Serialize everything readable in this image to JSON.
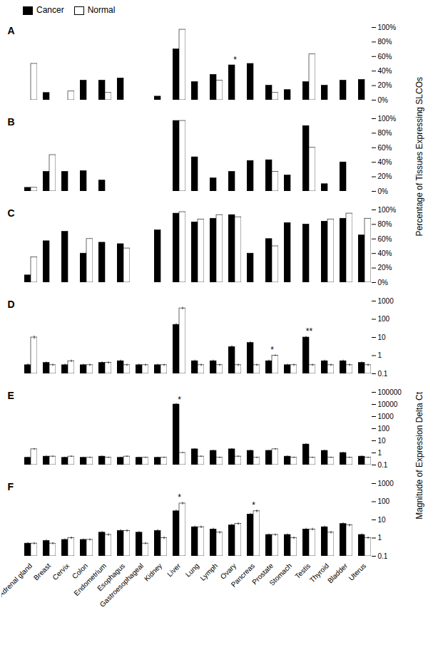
{
  "chart_data": [
    {
      "type": "bar",
      "title": "A",
      "y_label": "Percentage of Tissues Expressing SLCOs",
      "legend": "upper left",
      "tick_labels": "y",
      "categories": [
        "Adrenal gland",
        "Breast",
        "Cervix",
        "Colon",
        "Endometrium",
        "Esophagus",
        "Gastroesophageal",
        "Kidney",
        "Liver",
        "Lung",
        "Lymph",
        "Ovary",
        "Pancreas",
        "Prostate",
        "Stomach",
        "Testis",
        "Thyroid",
        "Bladder",
        "Uterus"
      ],
      "series": [
        {
          "name": "Cancer",
          "color": "#000000",
          "values": [
            0,
            10,
            0,
            27,
            27,
            30,
            0,
            5,
            70,
            25,
            35,
            48,
            50,
            20,
            14,
            25,
            20,
            27,
            28
          ]
        },
        {
          "name": "Normal",
          "color": "#ffffff",
          "values": [
            50,
            0,
            12,
            0,
            10,
            0,
            0,
            0,
            97,
            0,
            27,
            0,
            0,
            10,
            0,
            63,
            0,
            0,
            0
          ]
        }
      ],
      "annotations": [
        {
          "category": "Ovary",
          "text": "*"
        }
      ],
      "ylim": [
        0,
        100
      ],
      "yticks": [
        {
          "value": 0,
          "label": "0%"
        },
        {
          "value": 20,
          "label": "20%"
        },
        {
          "value": 40,
          "label": "40%"
        },
        {
          "value": 60,
          "label": "60%"
        },
        {
          "value": 80,
          "label": "80%"
        },
        {
          "value": 100,
          "label": "100%"
        }
      ]
    },
    {
      "type": "bar",
      "title": "B",
      "tick_labels": "y",
      "categories": [
        "Adrenal gland",
        "Breast",
        "Cervix",
        "Colon",
        "Endometrium",
        "Esophagus",
        "Gastroesophageal",
        "Kidney",
        "Liver",
        "Lung",
        "Lymph",
        "Ovary",
        "Pancreas",
        "Prostate",
        "Stomach",
        "Testis",
        "Thyroid",
        "Bladder",
        "Uterus"
      ],
      "series": [
        {
          "name": "Cancer",
          "color": "#000000",
          "values": [
            5,
            27,
            27,
            28,
            15,
            0,
            0,
            0,
            97,
            47,
            18,
            27,
            42,
            43,
            22,
            90,
            10,
            40,
            0
          ]
        },
        {
          "name": "Normal",
          "color": "#ffffff",
          "values": [
            5,
            50,
            0,
            0,
            0,
            0,
            0,
            0,
            97,
            0,
            0,
            0,
            0,
            27,
            0,
            60,
            0,
            0,
            0
          ]
        }
      ],
      "ylim": [
        0,
        100
      ],
      "yticks": [
        {
          "value": 0,
          "label": "0%"
        },
        {
          "value": 20,
          "label": "20%"
        },
        {
          "value": 40,
          "label": "40%"
        },
        {
          "value": 60,
          "label": "60%"
        },
        {
          "value": 80,
          "label": "80%"
        },
        {
          "value": 100,
          "label": "100%"
        }
      ]
    },
    {
      "type": "bar",
      "title": "C",
      "tick_labels": "y",
      "categories": [
        "Adrenal gland",
        "Breast",
        "Cervix",
        "Colon",
        "Endometrium",
        "Esophagus",
        "Gastroesophageal",
        "Kidney",
        "Liver",
        "Lung",
        "Lymph",
        "Ovary",
        "Pancreas",
        "Prostate",
        "Stomach",
        "Testis",
        "Thyroid",
        "Bladder",
        "Uterus"
      ],
      "series": [
        {
          "name": "Cancer",
          "color": "#000000",
          "values": [
            10,
            57,
            70,
            40,
            55,
            53,
            0,
            72,
            95,
            83,
            88,
            93,
            40,
            60,
            82,
            80,
            84,
            88,
            65
          ]
        },
        {
          "name": "Normal",
          "color": "#ffffff",
          "values": [
            35,
            0,
            0,
            60,
            0,
            47,
            0,
            0,
            97,
            87,
            93,
            90,
            0,
            50,
            0,
            0,
            87,
            95,
            88
          ]
        }
      ],
      "ylim": [
        0,
        100
      ],
      "yticks": [
        {
          "value": 0,
          "label": "0%"
        },
        {
          "value": 20,
          "label": "20%"
        },
        {
          "value": 40,
          "label": "40%"
        },
        {
          "value": 60,
          "label": "60%"
        },
        {
          "value": 80,
          "label": "80%"
        },
        {
          "value": 100,
          "label": "100%"
        }
      ]
    },
    {
      "type": "bar",
      "title": "D",
      "y_label": "Magnitude of Expression Delta Ct",
      "tick_labels": "y",
      "log": "y",
      "categories": [
        "Adrenal gland",
        "Breast",
        "Cervix",
        "Colon",
        "Endometrium",
        "Esophagus",
        "Gastroesophageal",
        "Kidney",
        "Liver",
        "Lung",
        "Lymph",
        "Ovary",
        "Pancreas",
        "Prostate",
        "Stomach",
        "Testis",
        "Thyroid",
        "Bladder",
        "Uterus"
      ],
      "series": [
        {
          "name": "Cancer",
          "color": "#000000",
          "values": [
            0.3,
            0.4,
            0.3,
            0.3,
            0.4,
            0.5,
            0.3,
            0.3,
            50,
            0.5,
            0.5,
            3,
            5,
            0.5,
            0.3,
            10,
            0.5,
            0.5,
            0.4
          ],
          "errors": [
            0.05,
            0.05,
            0.04,
            0.04,
            0.06,
            0.07,
            0.04,
            0.04,
            8,
            0.07,
            0.07,
            0.5,
            0.8,
            0.07,
            0.04,
            1.5,
            0.07,
            0.07,
            0.05
          ]
        },
        {
          "name": "Normal",
          "color": "#ffffff",
          "values": [
            10,
            0.3,
            0.5,
            0.3,
            0.4,
            0.3,
            0.3,
            0.3,
            400,
            0.3,
            0.3,
            0.3,
            0.3,
            1,
            0.3,
            0.3,
            0.3,
            0.3,
            0.3
          ],
          "errors": [
            2,
            0.04,
            0.07,
            0.04,
            0.05,
            0.04,
            0.04,
            0.04,
            60,
            0.04,
            0.04,
            0.04,
            0.04,
            0.1,
            0.04,
            0.04,
            0.04,
            0.04,
            0.04
          ]
        }
      ],
      "annotations": [
        {
          "category": "Prostate",
          "text": "*"
        },
        {
          "category": "Testis",
          "text": "**"
        }
      ],
      "ylim": [
        0.1,
        1000
      ],
      "yticks": [
        0.1,
        1,
        10,
        100,
        1000
      ]
    },
    {
      "type": "bar",
      "title": "E",
      "tick_labels": "y",
      "log": "y",
      "categories": [
        "Adrenal gland",
        "Breast",
        "Cervix",
        "Colon",
        "Endometrium",
        "Esophagus",
        "Gastroesophageal",
        "Kidney",
        "Liver",
        "Lung",
        "Lymph",
        "Ovary",
        "Pancreas",
        "Prostate",
        "Stomach",
        "Testis",
        "Thyroid",
        "Bladder",
        "Uterus"
      ],
      "series": [
        {
          "name": "Cancer",
          "color": "#000000",
          "values": [
            0.4,
            0.5,
            0.4,
            0.4,
            0.5,
            0.4,
            0.4,
            0.4,
            10000,
            2,
            1.5,
            2,
            1.5,
            1.5,
            0.5,
            5,
            1.5,
            1,
            0.5
          ],
          "errors": [
            0.05,
            0.07,
            0.05,
            0.05,
            0.07,
            0.05,
            0.05,
            0.05,
            2000,
            0.3,
            0.2,
            0.3,
            0.2,
            0.2,
            0.07,
            0.8,
            0.2,
            0.15,
            0.07
          ]
        },
        {
          "name": "Normal",
          "color": "#ffffff",
          "values": [
            2,
            0.5,
            0.5,
            0.4,
            0.4,
            0.5,
            0.4,
            0.4,
            1,
            0.5,
            0.4,
            0.5,
            0.4,
            2,
            0.4,
            0.4,
            0.4,
            0.4,
            0.4
          ],
          "errors": [
            0.3,
            0.07,
            0.07,
            0.05,
            0.05,
            0.07,
            0.05,
            0.05,
            0.1,
            0.07,
            0.05,
            0.07,
            0.05,
            0.3,
            0.05,
            0.05,
            0.05,
            0.05,
            0.05
          ]
        }
      ],
      "annotations": [
        {
          "category": "Liver",
          "text": "*"
        }
      ],
      "ylim": [
        0.1,
        100000
      ],
      "yticks": [
        0.1,
        1,
        10,
        100,
        1000,
        10000,
        100000
      ]
    },
    {
      "type": "bar",
      "title": "F",
      "log": "y",
      "categories": [
        "Adrenal gland",
        "Breast",
        "Cervix",
        "Colon",
        "Endometrium",
        "Esophagus",
        "Gastroesophageal",
        "Kidney",
        "Liver",
        "Lung",
        "Lymph",
        "Ovary",
        "Pancreas",
        "Prostate",
        "Stomach",
        "Testis",
        "Thyroid",
        "Bladder",
        "Uterus"
      ],
      "series": [
        {
          "name": "Cancer",
          "color": "#000000",
          "values": [
            0.5,
            0.7,
            0.8,
            0.8,
            2,
            2.5,
            2,
            2.5,
            30,
            4,
            3,
            5,
            20,
            1.5,
            1.5,
            3,
            4,
            6,
            1.5
          ],
          "errors": [
            0.07,
            0.1,
            0.1,
            0.1,
            0.3,
            0.4,
            0.3,
            0.4,
            5,
            0.6,
            0.5,
            0.8,
            3,
            0.2,
            0.2,
            0.5,
            0.6,
            0.9,
            0.2
          ]
        },
        {
          "name": "Normal",
          "color": "#ffffff",
          "values": [
            0.5,
            0.5,
            1,
            0.8,
            1.5,
            2.5,
            0.5,
            1,
            80,
            4,
            2,
            6,
            30,
            1.5,
            1,
            3,
            2,
            5,
            1
          ],
          "errors": [
            0.07,
            0.07,
            0.15,
            0.1,
            0.2,
            0.4,
            0.07,
            0.15,
            12,
            0.6,
            0.3,
            0.9,
            5,
            0.2,
            0.15,
            0.5,
            0.3,
            0.8,
            0.15
          ]
        }
      ],
      "annotations": [
        {
          "category": "Liver",
          "text": "*"
        },
        {
          "category": "Pancreas",
          "text": "*"
        }
      ],
      "ylim": [
        0.1,
        1000
      ],
      "yticks": [
        0.1,
        1,
        10,
        100,
        1000
      ]
    }
  ]
}
